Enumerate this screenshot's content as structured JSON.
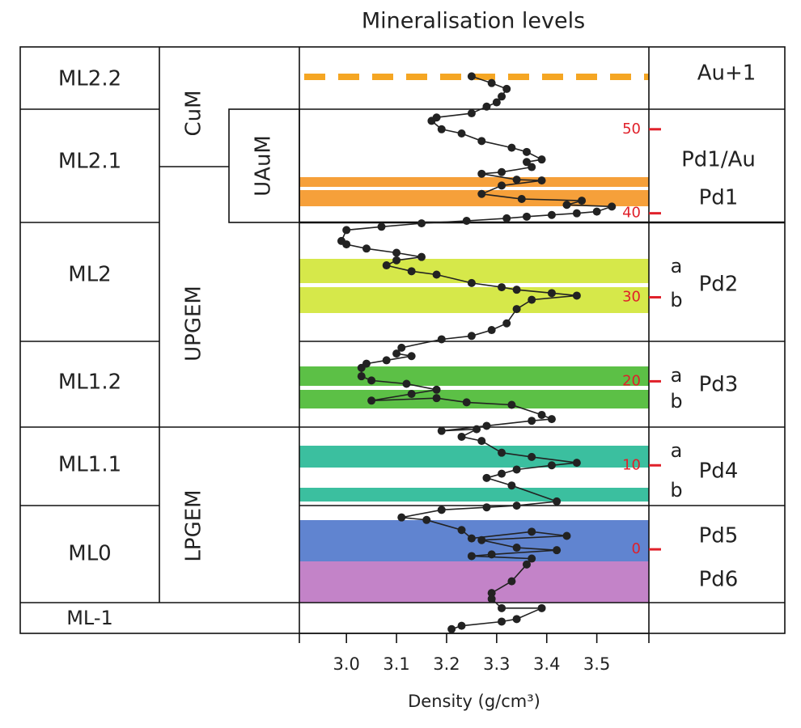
{
  "title": "Mineralisation levels",
  "levels": [
    "ML2.2",
    "ML2.1",
    "ML2",
    "ML1.2",
    "ML1.1",
    "ML0",
    "ML-1"
  ],
  "groups": [
    "CuM",
    "UAuM",
    "UPGEM",
    "LPGEM"
  ],
  "zones": [
    "Au+1",
    "Pd1/Au",
    "Pd1",
    "Pd2",
    "Pd3",
    "Pd4",
    "Pd5",
    "Pd6"
  ],
  "sublevels": [
    "a",
    "b",
    "a",
    "b",
    "a",
    "b"
  ],
  "chart_data": {
    "type": "line",
    "xlabel": "Density (g/cm³)",
    "color": "#222222",
    "depth_color": "#e0202a",
    "xlim": [
      2.906,
      3.604
    ],
    "xticks": [
      {
        "value": 3.0,
        "label": "3.0"
      },
      3.1,
      3.2,
      3.3,
      3.4,
      3.5
    ],
    "ylim": [
      -10,
      59.8
    ],
    "yticks": [
      0,
      10,
      20,
      30,
      40,
      50
    ],
    "x": [
      3.25,
      3.29,
      3.32,
      3.31,
      3.3,
      3.28,
      3.25,
      3.18,
      3.17,
      3.19,
      3.23,
      3.27,
      3.33,
      3.36,
      3.39,
      3.36,
      3.37,
      3.31,
      3.27,
      3.34,
      3.39,
      3.31,
      3.27,
      3.35,
      3.47,
      3.44,
      3.53,
      3.5,
      3.46,
      3.41,
      3.36,
      3.32,
      3.24,
      3.15,
      3.07,
      3.0,
      2.99,
      3.0,
      3.04,
      3.1,
      3.15,
      3.1,
      3.08,
      3.13,
      3.18,
      3.25,
      3.31,
      3.34,
      3.41,
      3.46,
      3.37,
      3.34,
      3.32,
      3.29,
      3.25,
      3.19,
      3.11,
      3.1,
      3.13,
      3.08,
      3.04,
      3.03,
      3.03,
      3.05,
      3.12,
      3.18,
      3.13,
      3.05,
      3.18,
      3.24,
      3.33,
      3.39,
      3.41,
      3.37,
      3.28,
      3.19,
      3.26,
      3.23,
      3.27,
      3.31,
      3.37,
      3.46,
      3.41,
      3.34,
      3.31,
      3.28,
      3.33,
      3.42,
      3.34,
      3.28,
      3.19,
      3.11,
      3.16,
      3.23,
      3.25,
      3.37,
      3.44,
      3.27,
      3.34,
      3.42,
      3.29,
      3.25,
      3.37,
      3.36,
      3.33,
      3.29,
      3.29,
      3.31,
      3.39,
      3.34,
      3.31,
      3.23,
      3.21
    ],
    "values": [
      56.3,
      55.5,
      54.8,
      53.9,
      53.2,
      52.7,
      51.9,
      51.4,
      51.0,
      50.0,
      49.5,
      48.6,
      47.8,
      47.3,
      46.4,
      46.1,
      45.5,
      44.9,
      44.7,
      44.0,
      43.9,
      43.3,
      42.3,
      41.7,
      41.5,
      41.0,
      40.8,
      40.2,
      40.0,
      39.8,
      39.6,
      39.4,
      39.1,
      38.8,
      38.4,
      38.0,
      36.7,
      36.3,
      35.8,
      35.3,
      34.8,
      34.4,
      33.8,
      33.1,
      32.7,
      31.7,
      31.2,
      30.9,
      30.5,
      30.2,
      29.7,
      28.6,
      26.9,
      26.1,
      25.4,
      25.0,
      24.0,
      23.3,
      23.0,
      22.5,
      22.1,
      21.6,
      20.6,
      20.1,
      19.7,
      19.0,
      18.5,
      17.7,
      18.0,
      17.5,
      17.2,
      16.0,
      15.5,
      15.3,
      14.7,
      14.1,
      14.3,
      13.4,
      12.9,
      11.5,
      11.0,
      10.3,
      10.0,
      9.5,
      9.0,
      8.5,
      7.6,
      5.7,
      5.2,
      5.0,
      4.7,
      3.8,
      3.5,
      2.3,
      1.3,
      2.1,
      1.6,
      1.1,
      0.2,
      -0.1,
      -0.6,
      -0.8,
      -1.1,
      -1.8,
      -3.8,
      -5.2,
      -5.9,
      -7.0,
      -7.0,
      -8.3,
      -8.6,
      -9.1,
      -9.5
    ]
  }
}
